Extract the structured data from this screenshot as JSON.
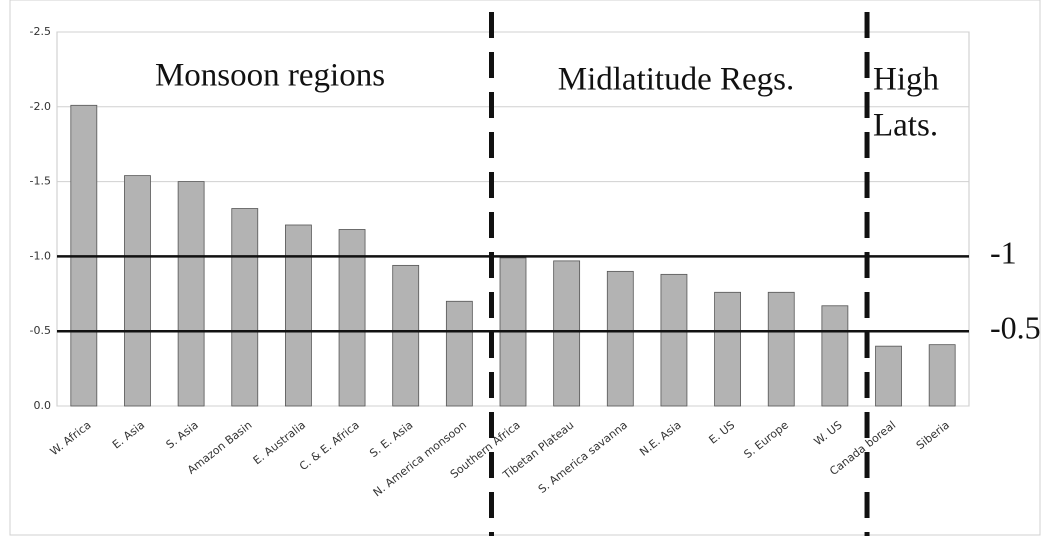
{
  "chart_data": {
    "type": "bar",
    "categories": [
      "W. Africa",
      "E. Asia",
      "S. Asia",
      "Amazon Basin",
      "E. Australia",
      "C. & E. Africa",
      "S. E. Asia",
      "N. America monsoon",
      "Southern Africa",
      "Tibetan Plateau",
      "S. America savanna",
      "N.E. Asia",
      "E. US",
      "S. Europe",
      "W. US",
      "Canada boreal",
      "Siberia"
    ],
    "values": [
      -2.01,
      -1.54,
      -1.5,
      -1.32,
      -1.21,
      -1.18,
      -0.94,
      -0.7,
      -0.99,
      -0.97,
      -0.9,
      -0.88,
      -0.76,
      -0.76,
      -0.67,
      -0.4,
      -0.41
    ],
    "color": "#b3b3b3",
    "ylim": [
      0,
      -2.5
    ],
    "yticks": [
      {
        "value": 0,
        "label": "0.0"
      },
      -0.5,
      {
        "value": -1,
        "label": "-1.0"
      },
      -1.5,
      {
        "value": -2,
        "label": "-2.0"
      },
      -2.5
    ],
    "grid": true,
    "reference_lines": [
      {
        "value": -1,
        "label": "-1"
      },
      {
        "value": -0.5,
        "label": "-0.5"
      }
    ],
    "annotations": [
      "Monsoon regions",
      "Midlatitude Regs.",
      [
        "High",
        "Lats."
      ]
    ]
  }
}
